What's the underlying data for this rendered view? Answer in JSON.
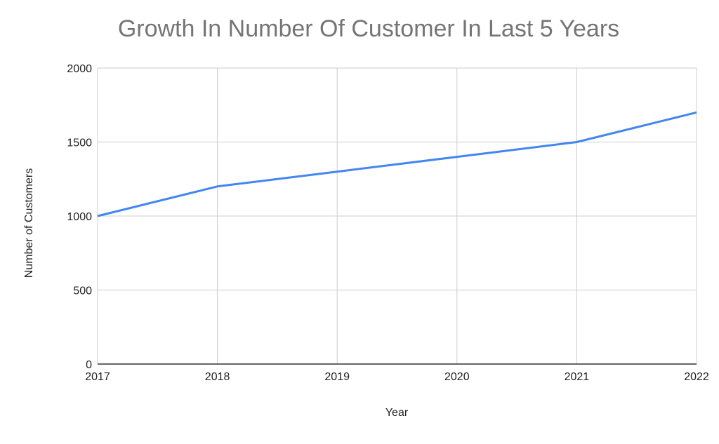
{
  "chart_data": {
    "type": "line",
    "title": "Growth In Number Of Customer In Last 5 Years",
    "xlabel": "Year",
    "ylabel": "Number of Customers",
    "categories": [
      "2017",
      "2018",
      "2019",
      "2020",
      "2021",
      "2022"
    ],
    "series": [
      {
        "name": "Number of Customers",
        "values": [
          1000,
          1200,
          1300,
          1400,
          1500,
          1700
        ],
        "color": "#4285f4"
      }
    ],
    "ylim": [
      0,
      2000
    ],
    "yticks": [
      "0",
      "500",
      "1000",
      "1500",
      "2000"
    ],
    "grid": true,
    "legend": "none"
  }
}
